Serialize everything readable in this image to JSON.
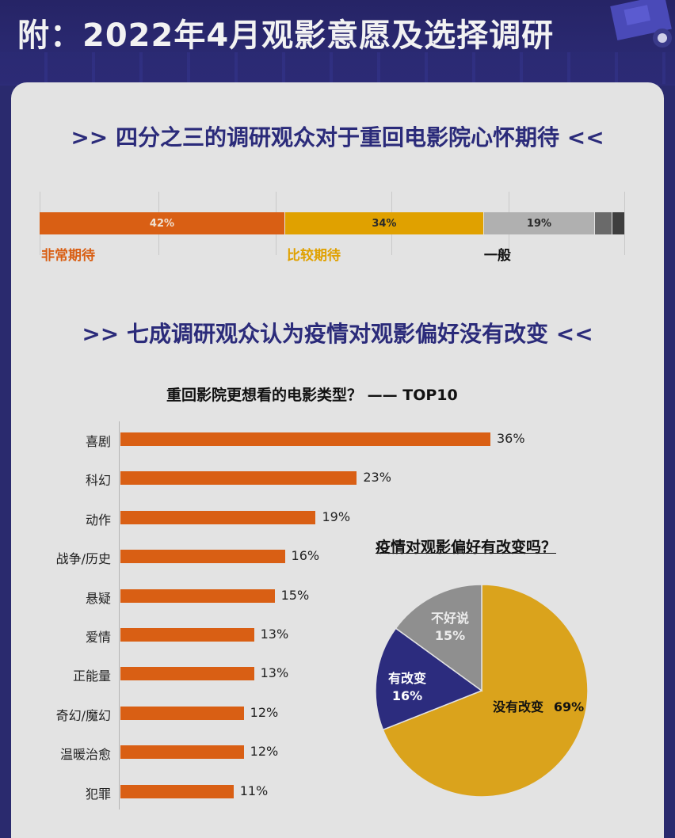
{
  "header": {
    "title": "附：2022年4月观影意愿及选择调研"
  },
  "section1": {
    "title": ">> 四分之三的调研观众对于重回电影院心怀期待 <<"
  },
  "expectation": {
    "segments": [
      {
        "label": "非常期待",
        "value": 42,
        "display": "42%",
        "color": "#d95f14",
        "text_color": "#f0e0d0",
        "label_color": "#d95f14"
      },
      {
        "label": "比较期待",
        "value": 34,
        "display": "34%",
        "color": "#e0a100",
        "text_color": "#2a2a2a",
        "label_color": "#e0a100"
      },
      {
        "label": "一般",
        "value": 19,
        "display": "19%",
        "color": "#b0b0b0",
        "text_color": "#2a2a2a",
        "label_color": "#111111"
      },
      {
        "label": "",
        "value": 3,
        "display": "",
        "color": "#6a6a6a",
        "text_color": "#ffffff",
        "label_color": "#111111"
      },
      {
        "label": "",
        "value": 2,
        "display": "",
        "color": "#3e3e3e",
        "text_color": "#ffffff",
        "label_color": "#111111"
      }
    ]
  },
  "section2": {
    "title": ">> 七成调研观众认为疫情对观影偏好没有改变 <<"
  },
  "chart_data": [
    {
      "type": "bar",
      "orientation": "horizontal",
      "title": "重回影院更想看的电影类型？ —— TOP10",
      "categories": [
        "喜剧",
        "科幻",
        "动作",
        "战争/历史",
        "悬疑",
        "爱情",
        "正能量",
        "奇幻/魔幻",
        "温暖治愈",
        "犯罪"
      ],
      "values": [
        36,
        23,
        19,
        16,
        15,
        13,
        13,
        12,
        12,
        11
      ],
      "labels": [
        "36%",
        "23%",
        "19%",
        "16%",
        "15%",
        "13%",
        "13%",
        "12%",
        "12%",
        "11%"
      ],
      "unit": "%",
      "color": "#d95f14"
    },
    {
      "type": "pie",
      "title": "疫情对观影偏好有改变吗？",
      "slices": [
        {
          "label": "没有改变",
          "value": 69,
          "display": "69%",
          "color": "#daa31c"
        },
        {
          "label": "有改变",
          "value": 16,
          "display": "16%",
          "color": "#2c2c7e"
        },
        {
          "label": "不好说",
          "value": 15,
          "display": "15%",
          "color": "#8f8f8f"
        }
      ]
    }
  ]
}
